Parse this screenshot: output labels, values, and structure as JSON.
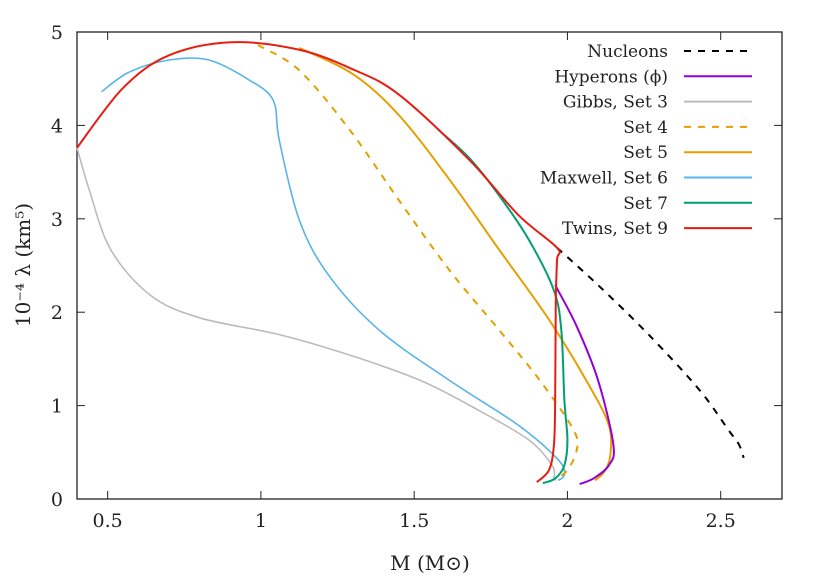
{
  "chart_data": {
    "type": "line",
    "xlabel": "M (M⊙)",
    "ylabel": "10⁻⁴ λ (km⁵)",
    "xlim": [
      0.4,
      2.7
    ],
    "ylim": [
      0,
      5
    ],
    "xticks": [
      "0.5",
      "1",
      "1.5",
      "2",
      "2.5"
    ],
    "yticks": [
      "0",
      "1",
      "2",
      "3",
      "4",
      "5"
    ],
    "grid": false,
    "legend_position": "top-right",
    "series": [
      {
        "name": "Nucleons",
        "color": "#000000",
        "dash": true,
        "x": [
          1.966,
          2.1,
          2.265,
          2.43,
          2.525,
          2.56,
          2.575
        ],
        "y": [
          2.69,
          2.29,
          1.76,
          1.17,
          0.74,
          0.58,
          0.44
        ]
      },
      {
        "name": "Hyperons (ϕ)",
        "color": "#9400d3",
        "dash": false,
        "x": [
          1.96,
          2.03,
          2.1,
          2.15,
          2.135,
          2.085,
          2.04
        ],
        "y": [
          2.29,
          1.85,
          1.27,
          0.58,
          0.36,
          0.22,
          0.16
        ]
      },
      {
        "name": "Gibbs, Set 3",
        "color": "#bbbbbb",
        "dash": false,
        "x": [
          0.4,
          0.44,
          0.51,
          0.64,
          0.8,
          1.06,
          1.29,
          1.52,
          1.71,
          1.875,
          1.95,
          1.956
        ],
        "y": [
          3.76,
          3.31,
          2.67,
          2.18,
          1.94,
          1.76,
          1.54,
          1.27,
          0.95,
          0.63,
          0.36,
          0.22
        ]
      },
      {
        "name": "Set 4",
        "color": "#e69f00",
        "dash": true,
        "x": [
          0.99,
          1.125,
          1.29,
          1.45,
          1.615,
          1.777,
          1.91,
          2.02,
          2.03,
          2.0,
          1.96
        ],
        "y": [
          4.86,
          4.59,
          3.95,
          3.2,
          2.45,
          1.81,
          1.27,
          0.74,
          0.52,
          0.31,
          0.2
        ]
      },
      {
        "name": "Set 5",
        "color": "#e69f00",
        "dash": false,
        "x": [
          1.125,
          1.3,
          1.45,
          1.615,
          1.777,
          1.94,
          2.07,
          2.135,
          2.14,
          2.12,
          2.09
        ],
        "y": [
          4.83,
          4.55,
          4.11,
          3.42,
          2.67,
          1.92,
          1.22,
          0.79,
          0.47,
          0.29,
          0.2
        ]
      },
      {
        "name": "Maxwell, Set 6",
        "color": "#56b4e9",
        "dash": false,
        "x": [
          0.48,
          0.57,
          0.7,
          0.83,
          0.96,
          1.04,
          1.06,
          1.125,
          1.22,
          1.385,
          1.615,
          1.84,
          1.97,
          1.99,
          1.97
        ],
        "y": [
          4.36,
          4.57,
          4.7,
          4.7,
          4.49,
          4.27,
          3.84,
          2.99,
          2.4,
          1.81,
          1.27,
          0.79,
          0.42,
          0.26,
          0.2
        ]
      },
      {
        "name": "Set 7",
        "color": "#009e73",
        "dash": false,
        "x": [
          1.58,
          1.68,
          1.777,
          1.875,
          1.955,
          1.98,
          1.99,
          2.0,
          1.99,
          1.96,
          1.92
        ],
        "y": [
          3.95,
          3.65,
          3.25,
          2.77,
          2.24,
          1.81,
          1.06,
          0.63,
          0.36,
          0.22,
          0.17
        ]
      },
      {
        "name": "Twins, Set 9",
        "color": "#e51e10",
        "dash": false,
        "x": [
          0.4,
          0.55,
          0.7,
          0.904,
          1.125,
          1.3,
          1.45,
          1.68,
          1.84,
          1.966,
          1.966,
          1.962,
          1.96,
          1.956,
          1.94,
          1.9
        ],
        "y": [
          3.76,
          4.4,
          4.75,
          4.89,
          4.81,
          4.6,
          4.33,
          3.63,
          3.04,
          2.69,
          2.56,
          2.13,
          1.06,
          0.58,
          0.31,
          0.18
        ]
      }
    ]
  }
}
